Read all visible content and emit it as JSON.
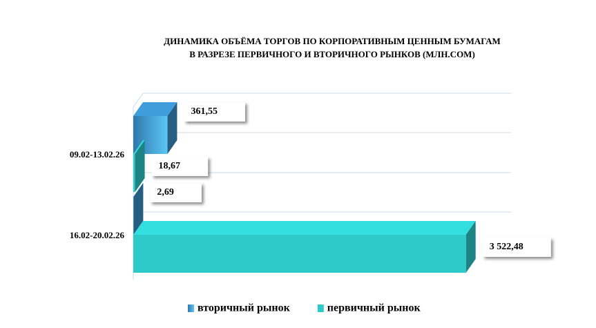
{
  "chart_data": {
    "type": "bar3d-horizontal",
    "title": [
      "ДИНАМИКА ОБЪЁМА ТОРГОВ ПО КОРПОРАТИВНЫМ ЦЕННЫМ БУМАГАМ",
      "В РАЗРЕЗЕ ПЕРВИЧНОГО И ВТОРИЧНОГО РЫНКОВ  (МЛН.СОМ)"
    ],
    "categories": [
      "09.02-13.02.26",
      "16.02-20.02.26"
    ],
    "series": [
      {
        "name": "вторичный рынок",
        "color": "#3a8fc8",
        "values": [
          361.55,
          2.69
        ],
        "value_labels": [
          "361,55",
          "2,69"
        ]
      },
      {
        "name": "первичный рынок",
        "color": "#2ecaca",
        "values": [
          18.67,
          3522.48
        ],
        "value_labels": [
          "18,67",
          "3 522,48"
        ]
      }
    ],
    "xlim": [
      0,
      4000
    ],
    "legend": "bottom"
  }
}
